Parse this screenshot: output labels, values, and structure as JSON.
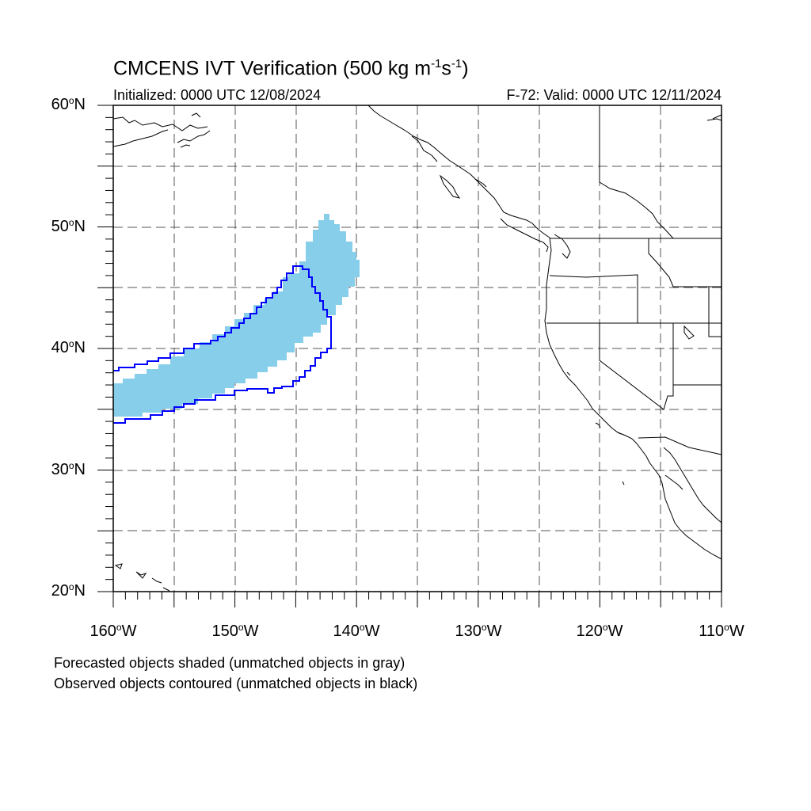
{
  "title": {
    "main": "CMCENS IVT Verification (500 kg m",
    "exp1": "-1",
    "mid": "s",
    "exp2": "-1",
    "close": ")"
  },
  "subtitle": {
    "initialized": "Initialized: 0000 UTC 12/08/2024",
    "valid": "F-72: Valid: 0000 UTC 12/11/2024"
  },
  "axes": {
    "lat_labels": [
      {
        "value": "60",
        "hemi": "N"
      },
      {
        "value": "50",
        "hemi": "N"
      },
      {
        "value": "40",
        "hemi": "N"
      },
      {
        "value": "30",
        "hemi": "N"
      },
      {
        "value": "20",
        "hemi": "N"
      }
    ],
    "lon_labels": [
      {
        "value": "160",
        "hemi": "W"
      },
      {
        "value": "150",
        "hemi": "W"
      },
      {
        "value": "140",
        "hemi": "W"
      },
      {
        "value": "130",
        "hemi": "W"
      },
      {
        "value": "120",
        "hemi": "W"
      },
      {
        "value": "110",
        "hemi": "W"
      }
    ],
    "lat_range": [
      20,
      60
    ],
    "lon_range": [
      -160,
      -110
    ],
    "grid_spacing_deg": 5
  },
  "legend": {
    "line1": "Forecasted objects shaded (unmatched objects in gray)",
    "line2": "Observed objects contoured (unmatched objects in black)"
  },
  "colors": {
    "forecast_fill": "#87ceeb",
    "observed_contour": "#0000ff",
    "coastline": "#000000",
    "grid": "#555555"
  }
}
